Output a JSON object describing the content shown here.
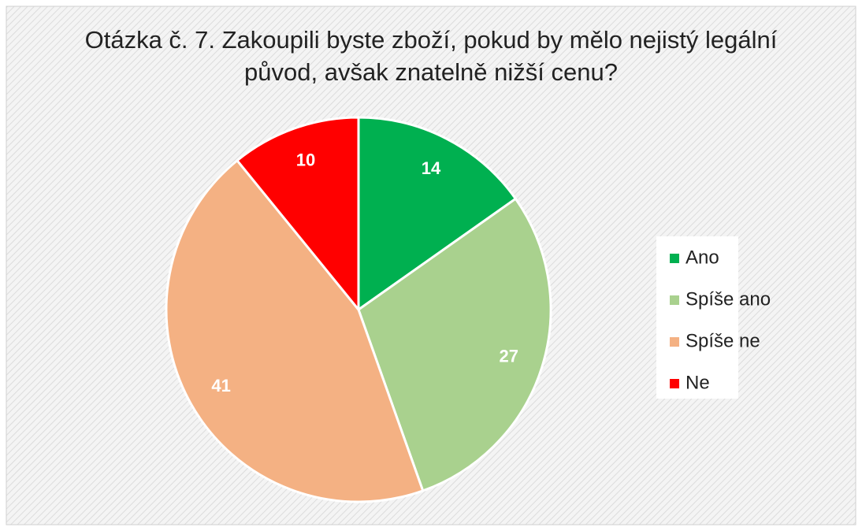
{
  "chart_data": {
    "type": "pie",
    "title": "Otázka č. 7. Zakoupili byste zboží, pokud by mělo nejistý legální původ, avšak znatelně nižší cenu?",
    "categories": [
      "Ano",
      "Spíše ano",
      "Spíše ne",
      "Ne"
    ],
    "values": [
      14,
      27,
      41,
      10
    ],
    "colors": [
      "#00b050",
      "#a9d18e",
      "#f4b183",
      "#ff0000"
    ],
    "legend": "right"
  }
}
